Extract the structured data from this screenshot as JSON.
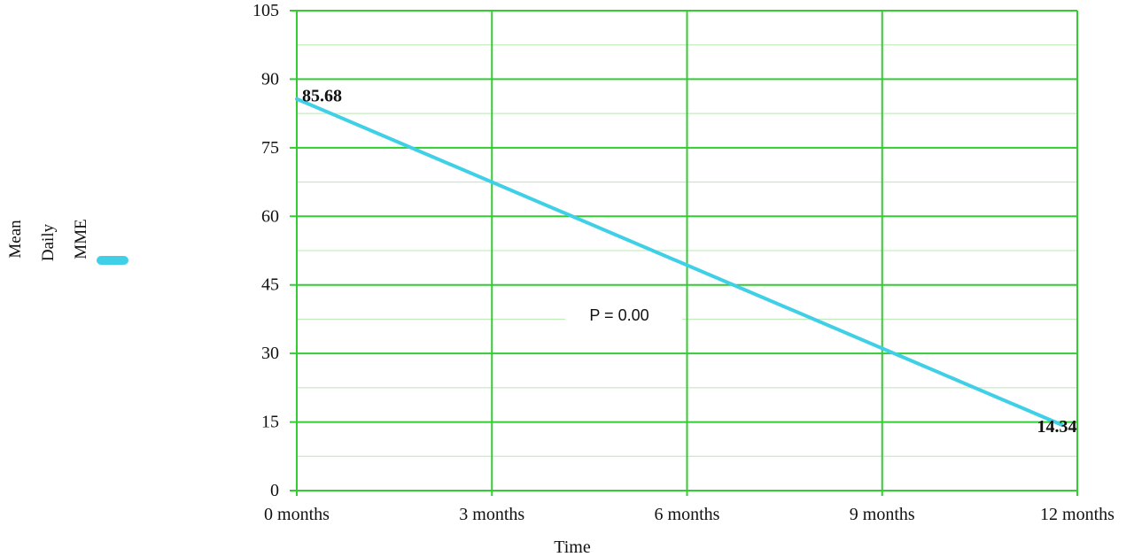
{
  "chart_data": {
    "type": "line",
    "x": [
      "0 months",
      "3 months",
      "6 months",
      "9 months",
      "12 months"
    ],
    "series": [
      {
        "name": "Mean Daily MME",
        "x": [
          "0 months",
          "12 months"
        ],
        "values": [
          85.68,
          14.34
        ],
        "color": "#3fd0e8"
      }
    ],
    "data_labels": [
      "85.68",
      "14.34"
    ],
    "xlabel": "Time",
    "ylabel": "",
    "ylim": [
      0,
      105
    ],
    "yticks": [
      0,
      15,
      30,
      45,
      60,
      75,
      90,
      105
    ],
    "grid": true,
    "grid_color": "#33cc33",
    "minor_grid_color": "#b8e8b0",
    "legend": {
      "placement": "left",
      "lines": [
        "Mean",
        "Daily",
        "MME"
      ]
    },
    "annotation": "P = 0.00"
  }
}
